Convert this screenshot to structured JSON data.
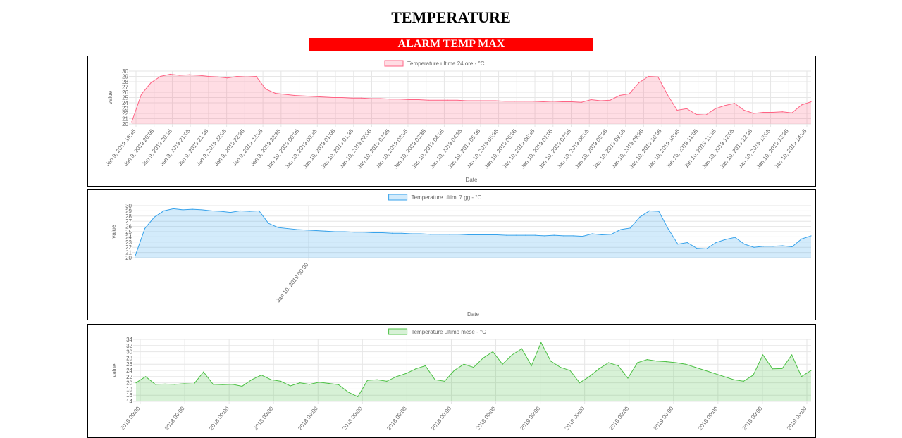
{
  "page": {
    "title": "TEMPERATURE",
    "alarm": "ALARM TEMP MAX"
  },
  "chart_data": [
    {
      "type": "area",
      "legend": "Temperature ultime 24 ore - °C",
      "xlabel": "Date",
      "ylabel": "value",
      "ylim": [
        20,
        30
      ],
      "yticks": [
        20,
        21,
        22,
        23,
        24,
        25,
        26,
        27,
        28,
        29,
        30
      ],
      "color": "#ff6384",
      "fill": "rgba(255,99,132,0.22)",
      "grid": true,
      "legend_position": "top",
      "xtick_labels": [
        "Jan 9, 2019 19:35",
        "Jan 9, 2019 20:05",
        "Jan 9, 2019 20:35",
        "Jan 9, 2019 21:05",
        "Jan 9, 2019 21:35",
        "Jan 9, 2019 22:05",
        "Jan 9, 2019 22:35",
        "Jan 9, 2019 23:05",
        "Jan 9, 2019 23:35",
        "Jan 10, 2019 00:05",
        "Jan 10, 2019 00:35",
        "Jan 10, 2019 01:05",
        "Jan 10, 2019 01:35",
        "Jan 10, 2019 02:05",
        "Jan 10, 2019 02:35",
        "Jan 10, 2019 03:05",
        "Jan 10, 2019 03:35",
        "Jan 10, 2019 04:05",
        "Jan 10, 2019 04:35",
        "Jan 10, 2019 05:05",
        "Jan 10, 2019 05:35",
        "Jan 10, 2019 06:05",
        "Jan 10, 2019 06:35",
        "Jan 10, 2019 07:05",
        "Jan 10, 2019 07:35",
        "Jan 10, 2019 08:05",
        "Jan 10, 2019 08:35",
        "Jan 10, 2019 09:05",
        "Jan 10, 2019 09:35",
        "Jan 10, 2019 10:05",
        "Jan 10, 2019 10:35",
        "Jan 10, 2019 11:05",
        "Jan 10, 2019 11:35",
        "Jan 10, 2019 12:05",
        "Jan 10, 2019 12:35",
        "Jan 10, 2019 13:05",
        "Jan 10, 2019 13:35",
        "Jan 10, 2019 14:05"
      ],
      "values": [
        20.4,
        25.6,
        27.8,
        29.0,
        29.4,
        29.2,
        29.3,
        29.2,
        29.0,
        28.9,
        28.7,
        29.0,
        28.9,
        29.0,
        26.6,
        25.8,
        25.6,
        25.4,
        25.3,
        25.2,
        25.1,
        25.0,
        25.0,
        24.9,
        24.9,
        24.8,
        24.8,
        24.7,
        24.7,
        24.6,
        24.6,
        24.5,
        24.5,
        24.5,
        24.5,
        24.4,
        24.4,
        24.4,
        24.4,
        24.3,
        24.3,
        24.3,
        24.3,
        24.2,
        24.3,
        24.2,
        24.2,
        24.1,
        24.6,
        24.4,
        24.5,
        25.4,
        25.7,
        27.8,
        29.0,
        28.9,
        25.5,
        22.6,
        22.9,
        21.8,
        21.7,
        22.9,
        23.5,
        23.9,
        22.6,
        22.0,
        22.2,
        22.2,
        22.3,
        22.1,
        23.6,
        24.2
      ]
    },
    {
      "type": "area",
      "legend": "Temperature ultimi 7 gg - °C",
      "xlabel": "Date",
      "ylabel": "value",
      "ylim": [
        20,
        30
      ],
      "yticks": [
        20,
        21,
        22,
        23,
        24,
        25,
        26,
        27,
        28,
        29,
        30
      ],
      "color": "#36a2eb",
      "fill": "rgba(54,162,235,0.22)",
      "grid": true,
      "legend_position": "top",
      "xtick_labels": [
        "Jan 10, 2019 00:00"
      ],
      "values": [
        20.4,
        25.6,
        27.8,
        29.0,
        29.4,
        29.2,
        29.3,
        29.2,
        29.0,
        28.9,
        28.7,
        29.0,
        28.9,
        29.0,
        26.6,
        25.8,
        25.6,
        25.4,
        25.3,
        25.2,
        25.1,
        25.0,
        25.0,
        24.9,
        24.9,
        24.8,
        24.8,
        24.7,
        24.7,
        24.6,
        24.6,
        24.5,
        24.5,
        24.5,
        24.5,
        24.4,
        24.4,
        24.4,
        24.4,
        24.3,
        24.3,
        24.3,
        24.3,
        24.2,
        24.3,
        24.2,
        24.2,
        24.1,
        24.6,
        24.4,
        24.5,
        25.4,
        25.7,
        27.8,
        29.0,
        28.9,
        25.5,
        22.6,
        22.9,
        21.8,
        21.7,
        22.9,
        23.5,
        23.9,
        22.6,
        22.0,
        22.2,
        22.2,
        22.3,
        22.1,
        23.6,
        24.2
      ]
    },
    {
      "type": "area",
      "legend": "Temperature ultimo mese - °C",
      "xlabel": "",
      "ylabel": "value",
      "ylim": [
        14,
        34
      ],
      "yticks": [
        14,
        16,
        18,
        20,
        22,
        24,
        26,
        28,
        30,
        32,
        34
      ],
      "color": "#4bc043",
      "fill": "rgba(75,192,67,0.22)",
      "grid": true,
      "legend_position": "top",
      "xtick_labels": [
        "2019 00:00",
        "2018 00:00",
        "2018 00:00",
        "2018 00:00",
        "2018 00:00",
        "2018 00:00",
        "2018 00:00",
        "2018 00:00",
        "2019 00:00",
        "2019 00:00",
        "2019 00:00",
        "2019 00:00",
        "2019 00:00",
        "2019 00:00",
        "2019 00:00",
        "2019 00:00"
      ],
      "values": [
        20.0,
        22.0,
        19.5,
        19.6,
        19.5,
        19.7,
        19.6,
        23.5,
        19.5,
        19.4,
        19.5,
        18.9,
        21.0,
        22.5,
        21.0,
        20.5,
        19.0,
        20.0,
        19.5,
        20.2,
        19.8,
        19.4,
        17.0,
        15.5,
        20.8,
        21.0,
        20.5,
        22.0,
        23.0,
        24.5,
        25.5,
        21.0,
        20.5,
        24.0,
        26.0,
        25.0,
        28.0,
        30.0,
        26.0,
        29.0,
        31.0,
        25.5,
        33.0,
        27.0,
        25.0,
        24.0,
        20.0,
        22.0,
        24.5,
        26.5,
        25.5,
        21.5,
        26.5,
        27.5,
        27.0,
        26.8,
        26.5,
        26.0,
        25.0,
        24.0,
        23.0,
        22.0,
        21.0,
        20.5,
        22.5,
        29.0,
        24.5,
        24.6,
        29.0,
        22.0,
        24.0
      ]
    }
  ]
}
